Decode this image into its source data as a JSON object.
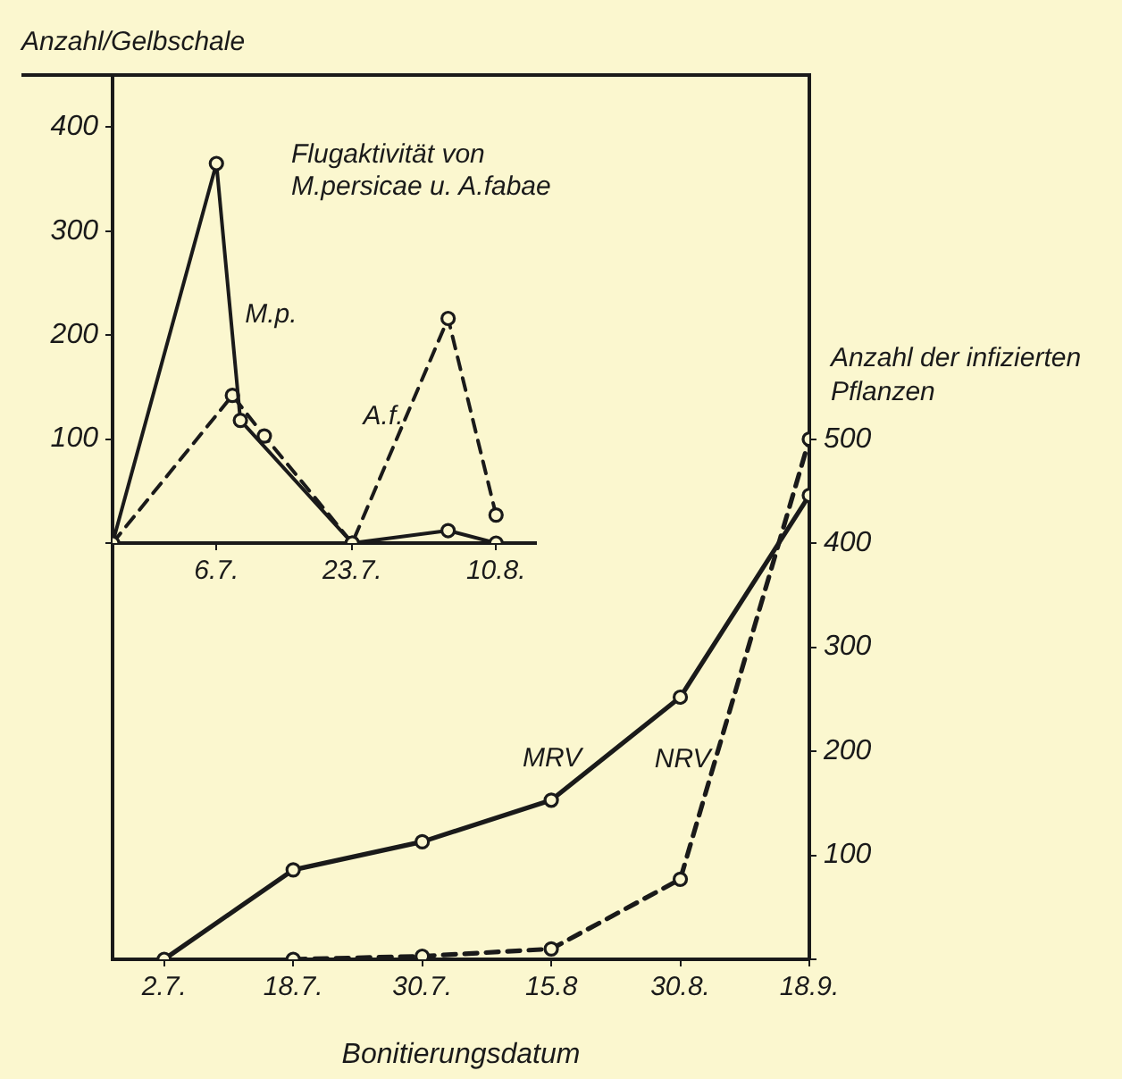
{
  "chart_data": [
    {
      "type": "line",
      "title": "Flugaktivität von M.persicae u. A.fabae",
      "ylabel": "Anzahl/Gelbschale",
      "xlim": [
        "--06-23",
        "--08-15"
      ],
      "xticks": [
        {
          "value": "--07-06",
          "label": "6.7."
        },
        {
          "value": "--07-23",
          "label": "23.7."
        },
        {
          "value": "--08-10",
          "label": "10.8."
        }
      ],
      "ylim": [
        0,
        450
      ],
      "yticks": [
        {
          "value": 0,
          "label": null
        },
        100,
        200,
        300,
        400
      ],
      "grid": false,
      "legend": false,
      "marker": "circle",
      "series": [
        {
          "name": "M.p.",
          "color": "#1a1a1a",
          "line_style": "solid",
          "x": [
            "--06-23",
            "--07-06",
            "--07-09",
            "--07-23",
            "--08-04",
            "--08-10"
          ],
          "values": [
            0,
            365,
            118,
            0,
            12,
            0
          ]
        },
        {
          "name": "A.f.",
          "color": "#1a1a1a",
          "line_style": "dashed",
          "x": [
            "--06-23",
            "--07-08",
            "--07-12",
            "--07-23",
            "--08-04",
            "--08-10"
          ],
          "values": [
            0,
            142,
            103,
            0,
            216,
            27
          ]
        }
      ]
    },
    {
      "type": "line",
      "xlabel": "Bonitierungsdatum",
      "y2label": "Anzahl der infizierten Pflanzen",
      "categories": [
        "2.7.",
        "18.7.",
        "30.7.",
        "15.8",
        "30.8.",
        "18.9."
      ],
      "y2lim": [
        0,
        850
      ],
      "y2ticks": [
        {
          "value": 0,
          "label": null
        },
        100,
        200,
        300,
        400,
        500
      ],
      "grid": false,
      "legend": false,
      "marker": "circle",
      "series": [
        {
          "name": "MRV",
          "color": "#1a1a1a",
          "line_style": "solid",
          "axis": "y2",
          "values": [
            0,
            86,
            113,
            153,
            252,
            446
          ]
        },
        {
          "name": "NRV",
          "color": "#1a1a1a",
          "line_style": "dashed",
          "axis": "y2",
          "values": [
            null,
            0,
            3,
            10,
            77,
            500
          ]
        }
      ]
    }
  ]
}
